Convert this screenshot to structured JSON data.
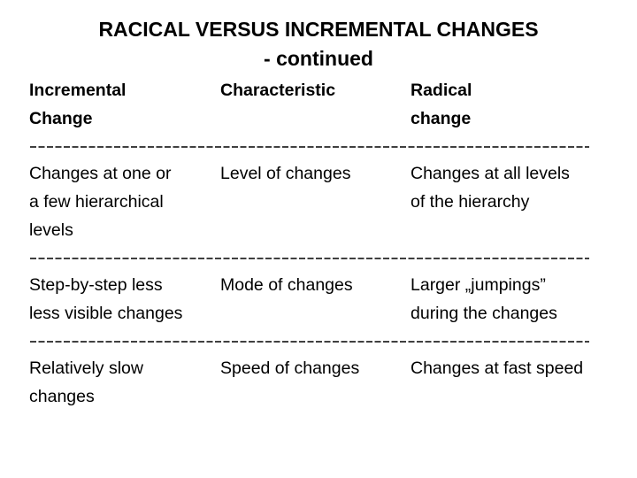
{
  "title": [
    "RACICAL VERSUS INCREMENTAL CHANGES",
    "- continued"
  ],
  "table": {
    "header": [
      [
        "Incremental",
        "Change"
      ],
      [
        "Characteristic"
      ],
      [
        "Radical",
        "change"
      ]
    ],
    "rows": [
      [
        [
          "Changes at one or",
          "a few hierarchical",
          "levels"
        ],
        [
          "Level of changes"
        ],
        [
          "Changes at all levels",
          "of the hierarchy"
        ]
      ],
      [
        [
          "Step-by-step less",
          "less visible changes"
        ],
        [
          "Mode of changes"
        ],
        [
          "Larger „jumpings”",
          "during the changes"
        ]
      ],
      [
        [
          "Relatively slow",
          "changes"
        ],
        [
          "Speed of changes"
        ],
        [
          "Changes at fast speed"
        ]
      ]
    ]
  }
}
